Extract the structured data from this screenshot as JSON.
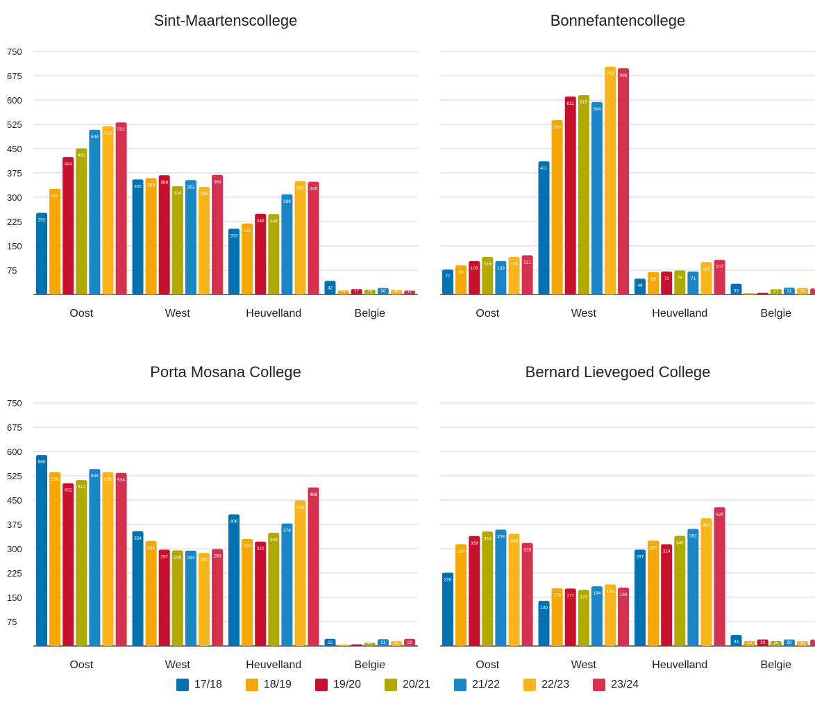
{
  "legend": [
    {
      "name": "17/18",
      "color": "#0072b2"
    },
    {
      "name": "18/19",
      "color": "#f6a800"
    },
    {
      "name": "19/20",
      "color": "#c8102e"
    },
    {
      "name": "20/21",
      "color": "#b0aa00"
    },
    {
      "name": "21/22",
      "color": "#1a86c8"
    },
    {
      "name": "22/23",
      "color": "#fbb51b"
    },
    {
      "name": "23/24",
      "color": "#d6304f"
    }
  ],
  "chart_data": [
    {
      "type": "bar",
      "title": "Sint-Maartenscollege",
      "categories": [
        "Oost",
        "West",
        "Heuvelland",
        "Belgie"
      ],
      "yticks": [
        75,
        150,
        225,
        300,
        375,
        450,
        525,
        600,
        675,
        750
      ],
      "ylim": [
        0,
        750
      ],
      "grid": true,
      "series": [
        {
          "name": "17/18",
          "values": [
            252,
            355,
            203,
            42
          ]
        },
        {
          "name": "18/19",
          "values": [
            326,
            359,
            219,
            12
          ]
        },
        {
          "name": "19/20",
          "values": [
            424,
            368,
            249,
            17
          ]
        },
        {
          "name": "20/21",
          "values": [
            451,
            334,
            248,
            15
          ]
        },
        {
          "name": "21/22",
          "values": [
            508,
            353,
            309,
            20
          ]
        },
        {
          "name": "22/23",
          "values": [
            519,
            332,
            350,
            14
          ]
        },
        {
          "name": "23/24",
          "values": [
            531,
            369,
            348,
            12
          ]
        }
      ]
    },
    {
      "type": "bar",
      "title": "Bonnefantencollege",
      "categories": [
        "Oost",
        "West",
        "Heuvelland",
        "Belgie"
      ],
      "yticks": [
        75,
        150,
        225,
        300,
        375,
        450,
        525,
        600,
        675,
        750
      ],
      "ylim": [
        0,
        750
      ],
      "grid": true,
      "series": [
        {
          "name": "17/18",
          "values": [
            77,
            411,
            49,
            33
          ]
        },
        {
          "name": "18/19",
          "values": [
            90,
            538,
            69,
            4
          ]
        },
        {
          "name": "19/20",
          "values": [
            103,
            611,
            71,
            5
          ]
        },
        {
          "name": "20/21",
          "values": [
            116,
            615,
            74,
            17
          ]
        },
        {
          "name": "21/22",
          "values": [
            103,
            594,
            71,
            21
          ]
        },
        {
          "name": "22/23",
          "values": [
            116,
            703,
            100,
            20
          ]
        },
        {
          "name": "23/24",
          "values": [
            121,
            698,
            107,
            19
          ]
        }
      ]
    },
    {
      "type": "bar",
      "title": "Porta Mosana College",
      "categories": [
        "Oost",
        "West",
        "Heuvelland",
        "Belgie"
      ],
      "yticks": [
        75,
        150,
        225,
        300,
        375,
        450,
        525,
        600,
        675,
        750
      ],
      "ylim": [
        0,
        750
      ],
      "grid": true,
      "series": [
        {
          "name": "17/18",
          "values": [
            589,
            354,
            406,
            22
          ]
        },
        {
          "name": "18/19",
          "values": [
            536,
            324,
            330,
            4
          ]
        },
        {
          "name": "19/20",
          "values": [
            502,
            297,
            322,
            5
          ]
        },
        {
          "name": "20/21",
          "values": [
            512,
            295,
            349,
            10
          ]
        },
        {
          "name": "21/22",
          "values": [
            546,
            294,
            378,
            21
          ]
        },
        {
          "name": "22/23",
          "values": [
            536,
            287,
            449,
            15
          ]
        },
        {
          "name": "23/24",
          "values": [
            534,
            299,
            489,
            22
          ]
        }
      ]
    },
    {
      "type": "bar",
      "title": "Bernard Lievegoed College",
      "categories": [
        "Oost",
        "West",
        "Heuvelland",
        "Belgie"
      ],
      "yticks": [
        75,
        150,
        225,
        300,
        375,
        450,
        525,
        600,
        675,
        750
      ],
      "ylim": [
        0,
        750
      ],
      "grid": true,
      "series": [
        {
          "name": "17/18",
          "values": [
            226,
            139,
            297,
            34
          ]
        },
        {
          "name": "18/19",
          "values": [
            314,
            178,
            325,
            15
          ]
        },
        {
          "name": "19/20",
          "values": [
            339,
            177,
            314,
            20
          ]
        },
        {
          "name": "20/21",
          "values": [
            353,
            173,
            340,
            15
          ]
        },
        {
          "name": "21/22",
          "values": [
            359,
            184,
            361,
            20
          ]
        },
        {
          "name": "22/23",
          "values": [
            346,
            190,
            394,
            15
          ]
        },
        {
          "name": "23/24",
          "values": [
            318,
            180,
            428,
            20
          ]
        }
      ]
    }
  ]
}
